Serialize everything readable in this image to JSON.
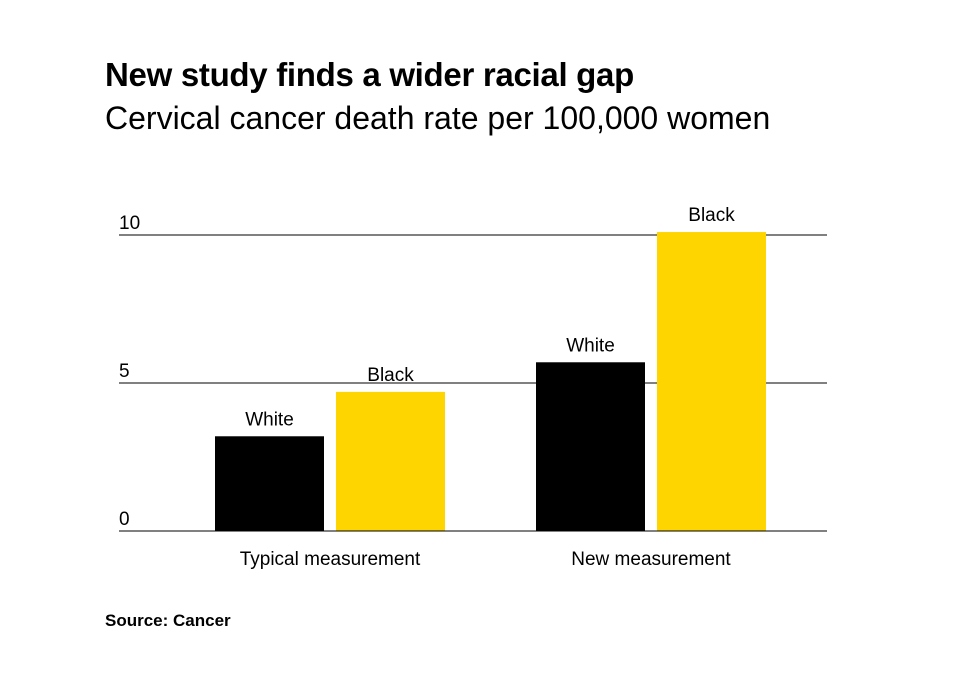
{
  "header": {
    "title": "New study finds a wider racial gap",
    "subtitle": "Cervical cancer death rate per 100,000 women"
  },
  "footer": {
    "source": "Source: Cancer"
  },
  "colors": {
    "White": "#000000",
    "Black": "#FFD500",
    "gridline": "#000000"
  },
  "chart_data": {
    "type": "bar",
    "title": "New study finds a wider racial gap",
    "subtitle": "Cervical cancer death rate per 100,000 women",
    "xlabel": "",
    "ylabel": "",
    "categories": [
      "Typical measurement",
      "New measurement"
    ],
    "series": [
      {
        "name": "White",
        "values": [
          3.2,
          5.7
        ]
      },
      {
        "name": "Black",
        "values": [
          4.7,
          10.1
        ]
      }
    ],
    "ylim": [
      0,
      10
    ],
    "yticks": [
      0,
      5,
      10
    ],
    "grid": true,
    "legend": "none (bars labeled directly)"
  }
}
